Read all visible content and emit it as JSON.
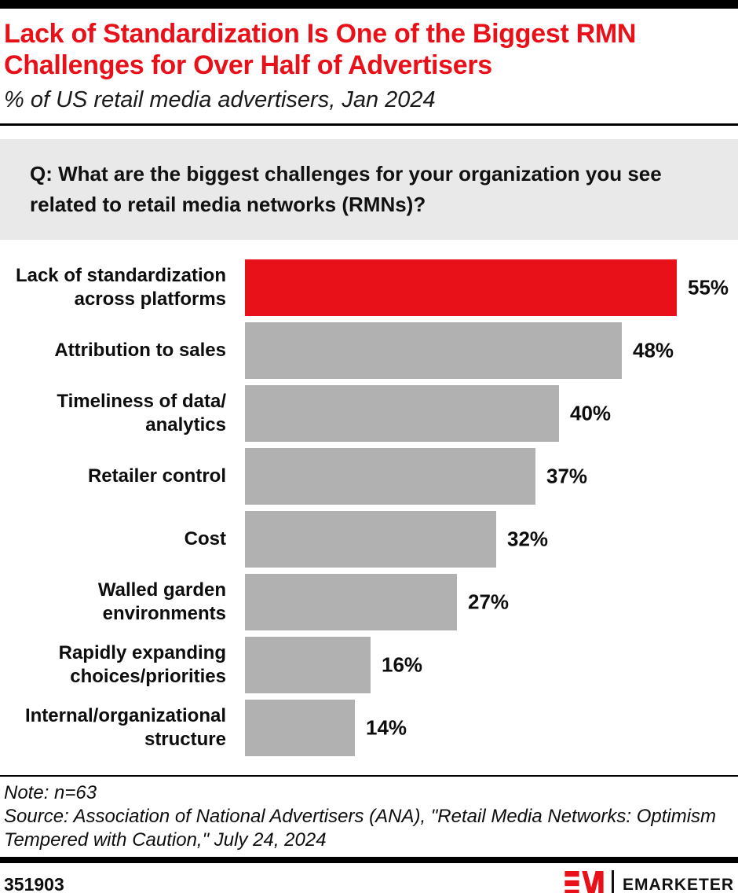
{
  "header": {
    "title": "Lack of Standardization Is One of the Biggest RMN\nChallenges for Over Half of Advertisers",
    "subtitle": "% of US retail media advertisers, Jan 2024"
  },
  "question": "Q: What are the biggest challenges for your organization you see\nrelated to retail media networks (RMNs)?",
  "chart_data": {
    "type": "bar",
    "orientation": "horizontal",
    "title": "Lack of Standardization Is One of the Biggest RMN Challenges for Over Half of Advertisers",
    "subtitle": "% of US retail media advertisers, Jan 2024",
    "categories": [
      "Lack of standardization\nacross platforms",
      "Attribution to sales",
      "Timeliness of data/\nanalytics",
      "Retailer control",
      "Cost",
      "Walled garden\nenvironments",
      "Rapidly expanding\nchoices/priorities",
      "Internal/organizational\nstructure"
    ],
    "values": [
      55,
      48,
      40,
      37,
      32,
      27,
      16,
      14
    ],
    "unit": "%",
    "xlim": [
      0,
      62
    ],
    "grid": false,
    "legend": false,
    "value_labels": "outside-end",
    "highlight_index": 0,
    "highlight_color": "#e8111a",
    "bar_color": "#b1b1b1"
  },
  "footnote": {
    "note": "Note: n=63",
    "source": "Source: Association of National Advertisers (ANA), \"Retail Media Networks: Optimism\nTempered with Caution,\" July 24, 2024"
  },
  "footer": {
    "chart_id": "351903",
    "brand": "EMARKETER",
    "brand_red": "#e8111a"
  }
}
